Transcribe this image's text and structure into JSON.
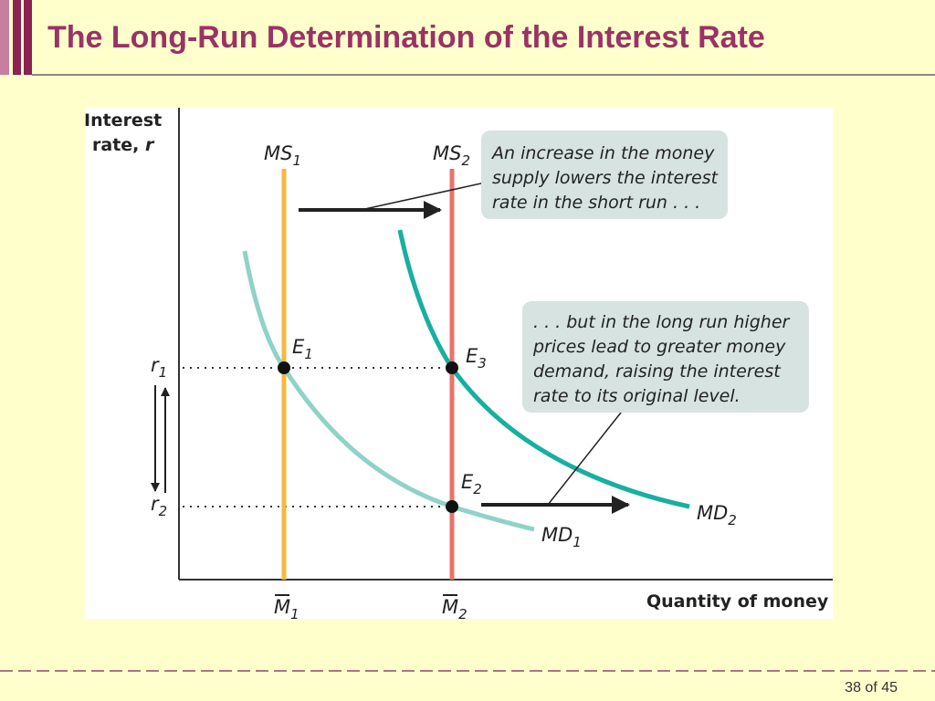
{
  "slide": {
    "title": "The Long-Run Determination of the Interest Rate",
    "page": "38 of 45"
  },
  "diagram": {
    "y_axis": {
      "line1": "Interest",
      "line2": "rate,",
      "var": "r"
    },
    "x_axis": "Quantity of money",
    "curves": [
      {
        "name": "MS",
        "sub": "1"
      },
      {
        "name": "MS",
        "sub": "2"
      },
      {
        "name": "MD",
        "sub": "1"
      },
      {
        "name": "MD",
        "sub": "2"
      }
    ],
    "points": [
      {
        "name": "E",
        "sub": "1"
      },
      {
        "name": "E",
        "sub": "2"
      },
      {
        "name": "E",
        "sub": "3"
      }
    ],
    "rates": [
      {
        "name": "r",
        "sub": "1"
      },
      {
        "name": "r",
        "sub": "2"
      }
    ],
    "quantities": [
      {
        "name": "M",
        "sub": "1"
      },
      {
        "name": "M",
        "sub": "2"
      }
    ],
    "notes": [
      {
        "lines": [
          "An increase in the money",
          "supply lowers the interest",
          "rate in the short run . . ."
        ]
      },
      {
        "lines": [
          ". . . but in the long run higher",
          "prices lead to greater money",
          "demand, raising the interest",
          "rate to its original level."
        ]
      }
    ]
  }
}
